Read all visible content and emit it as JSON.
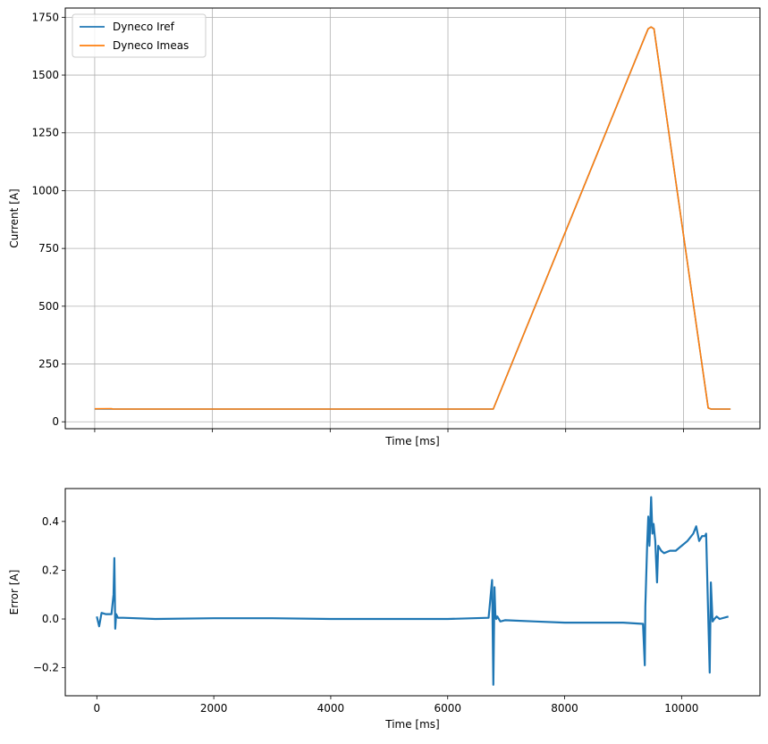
{
  "chart_data": [
    {
      "type": "line",
      "title": "",
      "xlabel": "Time [ms]",
      "ylabel": "Current [A]",
      "xlim": [
        -500,
        11300
      ],
      "ylim": [
        -30,
        1790
      ],
      "x_ticks": [
        0,
        2000,
        4000,
        6000,
        8000,
        10000
      ],
      "x_tick_labels_visible": false,
      "y_ticks": [
        0,
        250,
        500,
        750,
        1000,
        1250,
        1500,
        1750
      ],
      "y_tick_labels": [
        "0",
        "250",
        "500",
        "750",
        "1000",
        "1250",
        "1500",
        "1750"
      ],
      "grid": true,
      "legend_position": "upper-left",
      "series": [
        {
          "name": "Dyneco Iref",
          "color": "#1f77b4",
          "x": [
            0,
            6770,
            9400,
            9450,
            9500,
            10420,
            10470,
            10800
          ],
          "y": [
            55,
            55,
            1700,
            1708,
            1700,
            60,
            55,
            55
          ]
        },
        {
          "name": "Dyneco Imeas",
          "color": "#ff7f0e",
          "x": [
            0,
            290,
            300,
            6770,
            9400,
            9450,
            9500,
            10420,
            10470,
            10800
          ],
          "y": [
            56,
            57,
            55,
            55,
            1700,
            1708,
            1700,
            60,
            55,
            55
          ]
        }
      ]
    },
    {
      "type": "line",
      "title": "",
      "xlabel": "Time [ms]",
      "ylabel": "Error [A]",
      "xlim": [
        -540,
        11340
      ],
      "ylim": [
        -0.315,
        0.535
      ],
      "x_ticks": [
        0,
        2000,
        4000,
        6000,
        8000,
        10000
      ],
      "x_tick_labels": [
        "0",
        "2000",
        "4000",
        "6000",
        "8000",
        "10000"
      ],
      "y_ticks": [
        -0.2,
        0.0,
        0.2,
        0.4
      ],
      "y_tick_labels": [
        "−0.2",
        "0.0",
        "0.2",
        "0.4"
      ],
      "grid": false,
      "series": [
        {
          "color": "#1f77b4",
          "x": [
            0,
            40,
            80,
            150,
            250,
            285,
            300,
            315,
            330,
            360,
            450,
            1000,
            2000,
            3000,
            4000,
            5000,
            6000,
            6700,
            6760,
            6780,
            6800,
            6815,
            6830,
            6850,
            6900,
            6980,
            7500,
            8000,
            9000,
            9340,
            9370,
            9380,
            9410,
            9430,
            9450,
            9480,
            9500,
            9520,
            9550,
            9580,
            9600,
            9650,
            9700,
            9800,
            9900,
            10000,
            10100,
            10200,
            10250,
            10300,
            10350,
            10400,
            10420,
            10450,
            10480,
            10500,
            10530,
            10560,
            10600,
            10650,
            10800
          ],
          "y": [
            0.01,
            -0.03,
            0.025,
            0.02,
            0.02,
            0.1,
            0.25,
            -0.04,
            0.02,
            0.005,
            0.005,
            0.0,
            0.003,
            0.003,
            0.0,
            0.0,
            0.0,
            0.005,
            0.16,
            -0.27,
            0.13,
            0.02,
            0.0,
            0.01,
            -0.01,
            -0.005,
            -0.01,
            -0.015,
            -0.015,
            -0.02,
            -0.19,
            0.05,
            0.3,
            0.42,
            0.3,
            0.5,
            0.35,
            0.39,
            0.32,
            0.15,
            0.3,
            0.28,
            0.27,
            0.28,
            0.28,
            0.3,
            0.32,
            0.35,
            0.38,
            0.32,
            0.34,
            0.34,
            0.35,
            0.06,
            -0.22,
            0.15,
            -0.01,
            0.0,
            0.01,
            0.0,
            0.01
          ]
        }
      ]
    }
  ]
}
